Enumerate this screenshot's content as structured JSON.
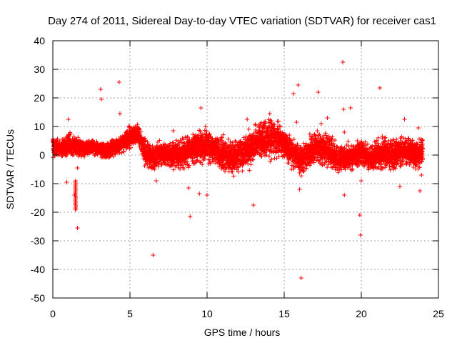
{
  "chart_data": {
    "type": "scatter",
    "title": "Day 274 of 2011, Sidereal Day-to-day VTEC variation (SDTVAR) for receiver cas1",
    "xlabel": "GPS time / hours",
    "ylabel": "SDTVAR / TECUs",
    "xlim": [
      0,
      25
    ],
    "ylim": [
      -50,
      40
    ],
    "xticks": [
      0,
      5,
      10,
      15,
      20,
      25
    ],
    "yticks": [
      -50,
      -40,
      -30,
      -20,
      -10,
      0,
      10,
      20,
      30,
      40
    ],
    "grid": true,
    "marker": "+",
    "color": "#ff0000",
    "series": [
      {
        "name": "cas1",
        "baseline": {
          "x": [
            0,
            0.5,
            1,
            1.5,
            2,
            2.5,
            3,
            3.5,
            4,
            4.5,
            5,
            5.5,
            6,
            6.5,
            7,
            7.5,
            8,
            8.5,
            9,
            9.5,
            10,
            10.5,
            11,
            11.5,
            12,
            12.5,
            13,
            13.5,
            14,
            14.5,
            15,
            15.5,
            16,
            16.5,
            17,
            17.5,
            18,
            18.5,
            19,
            19.5,
            20,
            20.5,
            21,
            21.5,
            22,
            22.5,
            23,
            23.5,
            24
          ],
          "y": [
            3,
            2,
            4,
            3,
            2,
            3,
            2,
            1,
            3,
            4,
            6,
            8,
            1,
            -1,
            1,
            0,
            0,
            1,
            2,
            3,
            3,
            2,
            1,
            -1,
            0,
            1,
            3,
            5,
            7,
            6,
            4,
            1,
            -2,
            0,
            3,
            2,
            1,
            -1,
            -1,
            0,
            1,
            -1,
            0,
            1,
            0,
            1,
            2,
            0,
            1
          ],
          "spread": [
            6,
            4,
            7,
            5,
            4,
            4,
            4,
            4,
            5,
            5,
            6,
            5,
            7,
            7,
            6,
            6,
            8,
            8,
            9,
            9,
            10,
            8,
            9,
            9,
            10,
            10,
            9,
            11,
            12,
            10,
            8,
            8,
            8,
            9,
            9,
            9,
            8,
            8,
            8,
            7,
            7,
            7,
            8,
            9,
            9,
            9,
            8,
            7,
            8
          ]
        },
        "outliers": {
          "x": [
            0.9,
            1.0,
            1.4,
            1.45,
            1.5,
            1.6,
            1.6,
            3.1,
            3.15,
            4.3,
            4.35,
            6.5,
            6.6,
            6.7,
            7.8,
            8.8,
            8.9,
            9.1,
            9.5,
            9.6,
            9.9,
            10.0,
            12.6,
            13.0,
            15.6,
            15.8,
            15.9,
            16.0,
            16.1,
            17.2,
            17.4,
            17.8,
            18.8,
            18.85,
            18.9,
            18.9,
            19.3,
            19.9,
            19.95,
            20.0,
            21.2,
            22.5,
            22.8,
            23.7,
            23.8,
            23.9
          ],
          "y": [
            -9.5,
            12.5,
            -14,
            -17,
            -19,
            -25.5,
            -4.5,
            23,
            19.5,
            25.5,
            14.5,
            -35,
            -5,
            -9,
            8.5,
            -11.5,
            -21.5,
            -3,
            -13.5,
            16.5,
            10,
            -14,
            12.5,
            -17.5,
            21.5,
            11.5,
            24.5,
            -12,
            -43,
            22,
            11,
            13,
            32.5,
            16,
            -14,
            8,
            16.5,
            -21,
            -28,
            -9,
            23.5,
            -11,
            12.5,
            9.5,
            -12.5,
            -7
          ]
        }
      }
    ]
  }
}
